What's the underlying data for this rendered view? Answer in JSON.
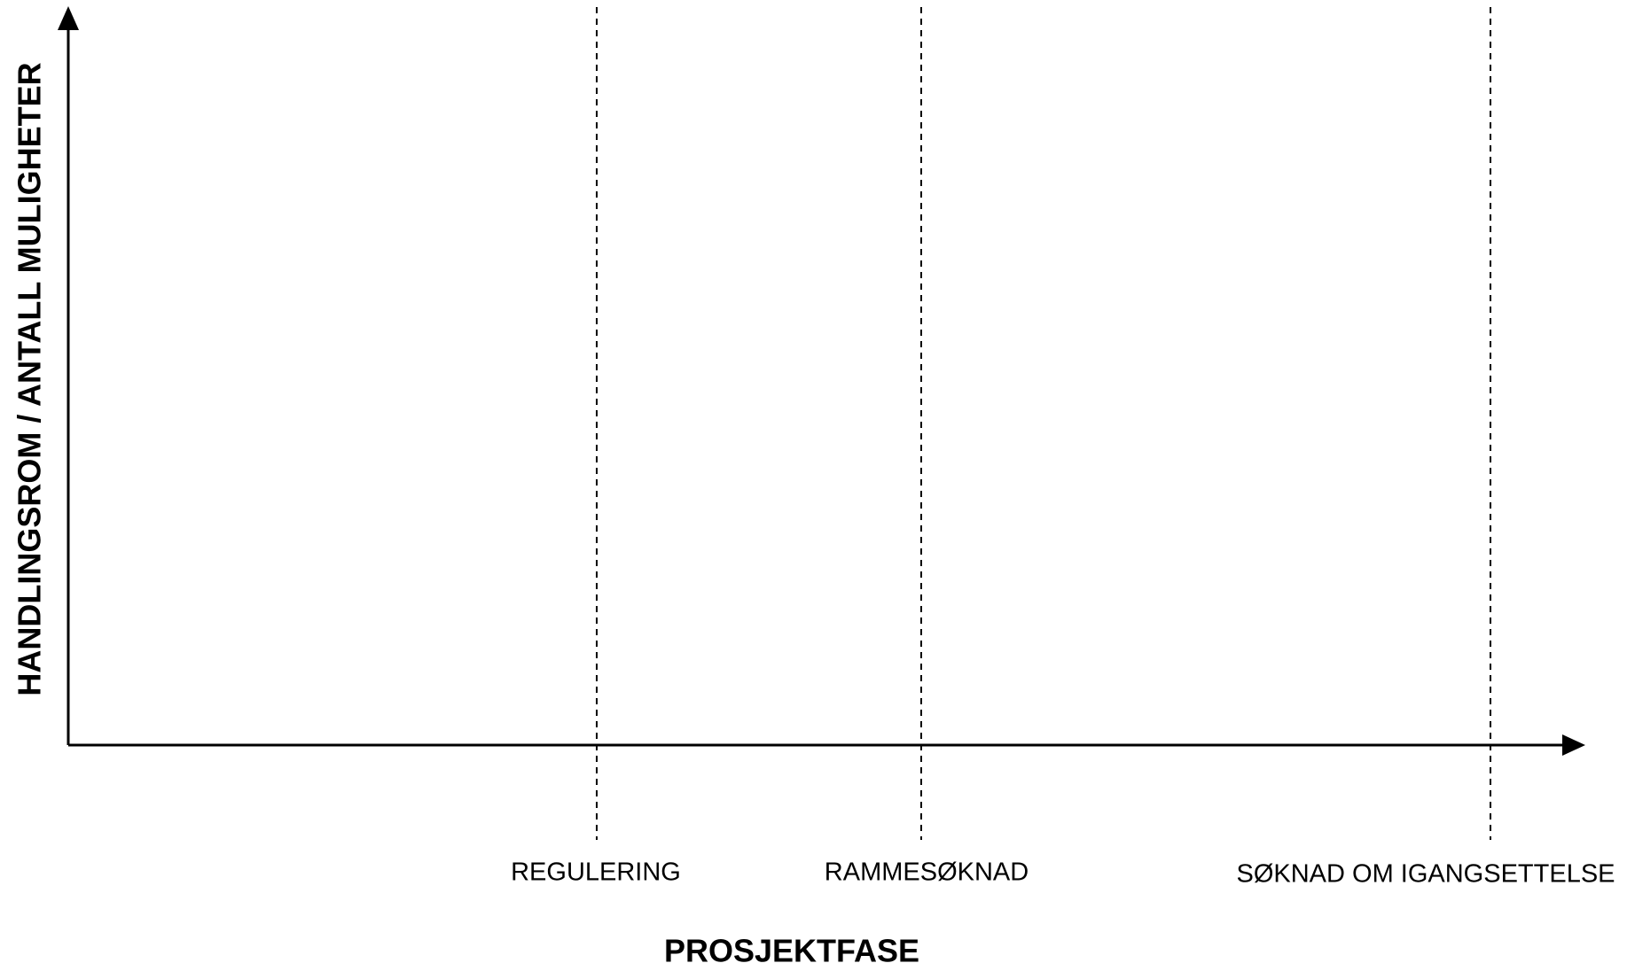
{
  "y_axis_label": "HANDLINGSROM / ANTALL MULIGHETER",
  "x_axis_label": "PROSJEKTFASE",
  "phases": [
    "REGULERING",
    "RAMMESØKNAD",
    "SØKNAD OM IGANGSETTELSE"
  ]
}
